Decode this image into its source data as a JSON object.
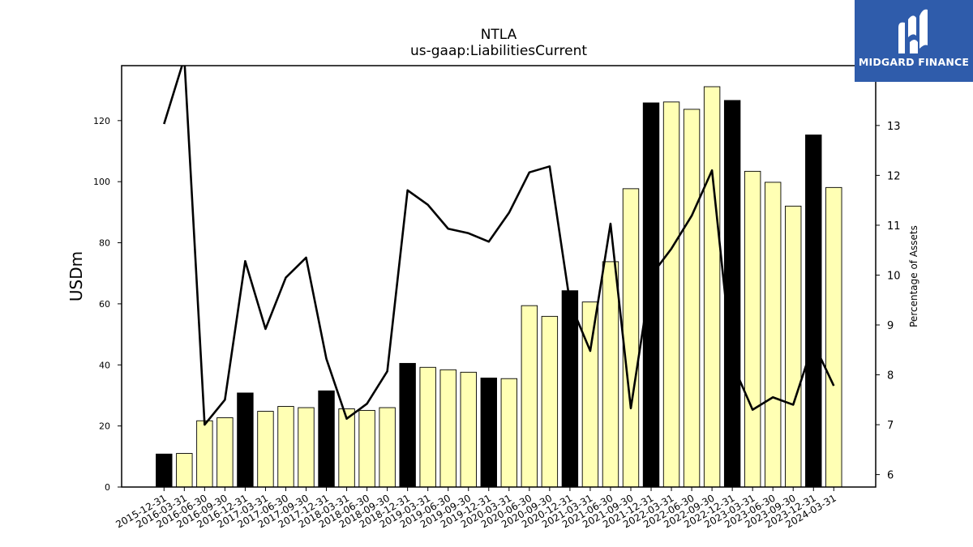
{
  "chart_data": {
    "type": "bar+line",
    "title": "NTLA",
    "subtitle": "us-gaap:LiabilitiesCurrent",
    "ylabel": "USDm",
    "y2label": "Percentage of Assets",
    "ylim": [
      0,
      138
    ],
    "y2lim": [
      5.75,
      14.2
    ],
    "yticks": [
      0,
      20,
      40,
      60,
      80,
      100,
      120
    ],
    "y2ticks": [
      6,
      7,
      8,
      9,
      10,
      11,
      12,
      13
    ],
    "grid": false,
    "categories": [
      "2015-12-31",
      "2016-03-31",
      "2016-06-30",
      "2016-09-30",
      "2016-12-31",
      "2017-03-31",
      "2017-06-30",
      "2017-09-30",
      "2017-12-31",
      "2018-03-31",
      "2018-06-30",
      "2018-09-30",
      "2018-12-31",
      "2019-03-31",
      "2019-06-30",
      "2019-09-30",
      "2019-12-31",
      "2020-03-31",
      "2020-06-30",
      "2020-09-30",
      "2020-12-31",
      "2021-03-31",
      "2021-06-30",
      "2021-09-30",
      "2021-12-31",
      "2022-03-31",
      "2022-06-30",
      "2022-09-30",
      "2022-12-31",
      "2023-03-31",
      "2023-06-30",
      "2023-09-30",
      "2023-12-31",
      "2024-03-31"
    ],
    "series": [
      {
        "kind": "bar",
        "values": [
          10.8,
          11.0,
          21.7,
          22.7,
          30.8,
          24.8,
          26.4,
          26.0,
          31.5,
          25.6,
          25.1,
          26.0,
          40.5,
          39.2,
          38.4,
          37.6,
          35.7,
          35.5,
          59.4,
          55.9,
          64.3,
          60.6,
          73.8,
          97.7,
          125.8,
          126.1,
          123.7,
          131.1,
          126.6,
          103.4,
          99.8,
          92.0,
          115.3,
          98.1
        ],
        "highlight": [
          1,
          0,
          0,
          0,
          1,
          0,
          0,
          0,
          1,
          0,
          0,
          0,
          1,
          0,
          0,
          0,
          1,
          0,
          0,
          0,
          1,
          0,
          0,
          0,
          1,
          0,
          0,
          0,
          1,
          0,
          0,
          0,
          1,
          0
        ]
      },
      {
        "kind": "line",
        "axis": "right",
        "values": [
          13.03,
          14.35,
          7.0,
          7.5,
          10.28,
          8.92,
          9.95,
          10.35,
          8.32,
          7.12,
          7.42,
          8.07,
          11.7,
          11.41,
          10.93,
          10.84,
          10.67,
          11.25,
          12.06,
          12.18,
          9.45,
          8.48,
          11.03,
          7.33,
          9.99,
          10.53,
          11.19,
          12.1,
          8.23,
          7.3,
          7.55,
          7.4,
          8.64,
          7.78
        ]
      }
    ],
    "colors": {
      "bar_fill": "#ffffb4",
      "highlight_fill": "#000000",
      "bar_edge": "#000000",
      "line": "#000000"
    }
  },
  "logo": {
    "text": "MIDGARD FINANCE",
    "color": "#2f5cab"
  }
}
